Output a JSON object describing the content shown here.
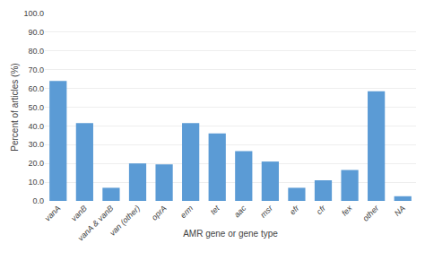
{
  "chart_data": {
    "type": "bar",
    "categories": [
      "vanA",
      "vanB",
      "vanA & vanB",
      "van (other)",
      "oprA",
      "erm",
      "tet",
      "aac",
      "msr",
      "efr",
      "cfr",
      "fex",
      "other",
      "NA"
    ],
    "values": [
      64.0,
      41.5,
      7.0,
      20.0,
      19.5,
      41.5,
      36.0,
      26.5,
      21.0,
      7.0,
      11.0,
      16.5,
      58.5,
      2.5
    ],
    "color": "#5B9BD5",
    "xlabel": "AMR gene or gene type",
    "ylabel": "Percent of articles (%)",
    "ylim": [
      0,
      100
    ],
    "yticks": [
      {
        "value": 0,
        "label": "0.0"
      },
      {
        "value": 10,
        "label": "10.0"
      },
      {
        "value": 20,
        "label": "20.0"
      },
      {
        "value": 30,
        "label": "30.0"
      },
      {
        "value": 40,
        "label": "40.0"
      },
      {
        "value": 50,
        "label": "50.0"
      },
      {
        "value": 60,
        "label": "60.0"
      },
      {
        "value": 70,
        "label": "70.0"
      },
      {
        "value": 80,
        "label": "80.0"
      },
      {
        "value": 90,
        "label": "90.0"
      },
      {
        "value": 100,
        "label": "100.0"
      }
    ],
    "grid": true
  }
}
